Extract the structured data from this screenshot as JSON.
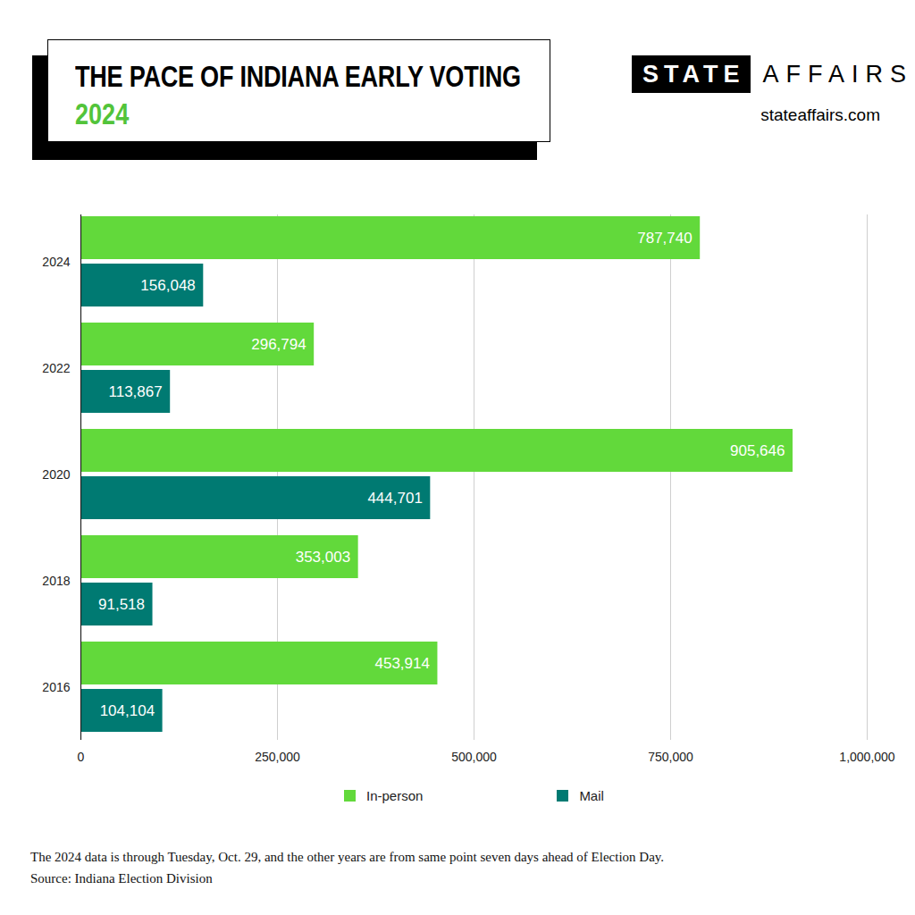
{
  "chart_data": {
    "type": "bar",
    "orientation": "horizontal",
    "title": "THE PACE OF INDIANA EARLY VOTING",
    "subtitle": "2024",
    "annotations": [
      "STATE",
      "AFFAIRS",
      "stateaffairs.com"
    ],
    "caption": "The 2024 data is through Tuesday, Oct. 29, and the other years are from same point seven days ahead of Election Day.",
    "source": "Source: Indiana Election Division",
    "categories": [
      "2024",
      "2022",
      "2020",
      "2018",
      "2016"
    ],
    "series": [
      {
        "name": "In-person",
        "color": "#62d93b",
        "values": [
          787740,
          296794,
          905646,
          353003,
          453914
        ],
        "value_labels": [
          "787,740",
          "296,794",
          "905,646",
          "353,003",
          "453,914"
        ]
      },
      {
        "name": "Mail",
        "color": "#007a72",
        "values": [
          156048,
          113867,
          444701,
          91518,
          104104
        ],
        "value_labels": [
          "156,048",
          "113,867",
          "444,701",
          "91,518",
          "104,104"
        ]
      }
    ],
    "xlim": [
      0,
      1000000
    ],
    "xticks": [
      0,
      {
        "value": 250000,
        "label": "250,000"
      },
      {
        "value": 500000,
        "label": "500,000"
      },
      {
        "value": 750000,
        "label": "750,000"
      },
      {
        "value": 1000000,
        "label": "1,000,000"
      }
    ],
    "grid": true,
    "legend": "bottom",
    "data_labels": true
  }
}
